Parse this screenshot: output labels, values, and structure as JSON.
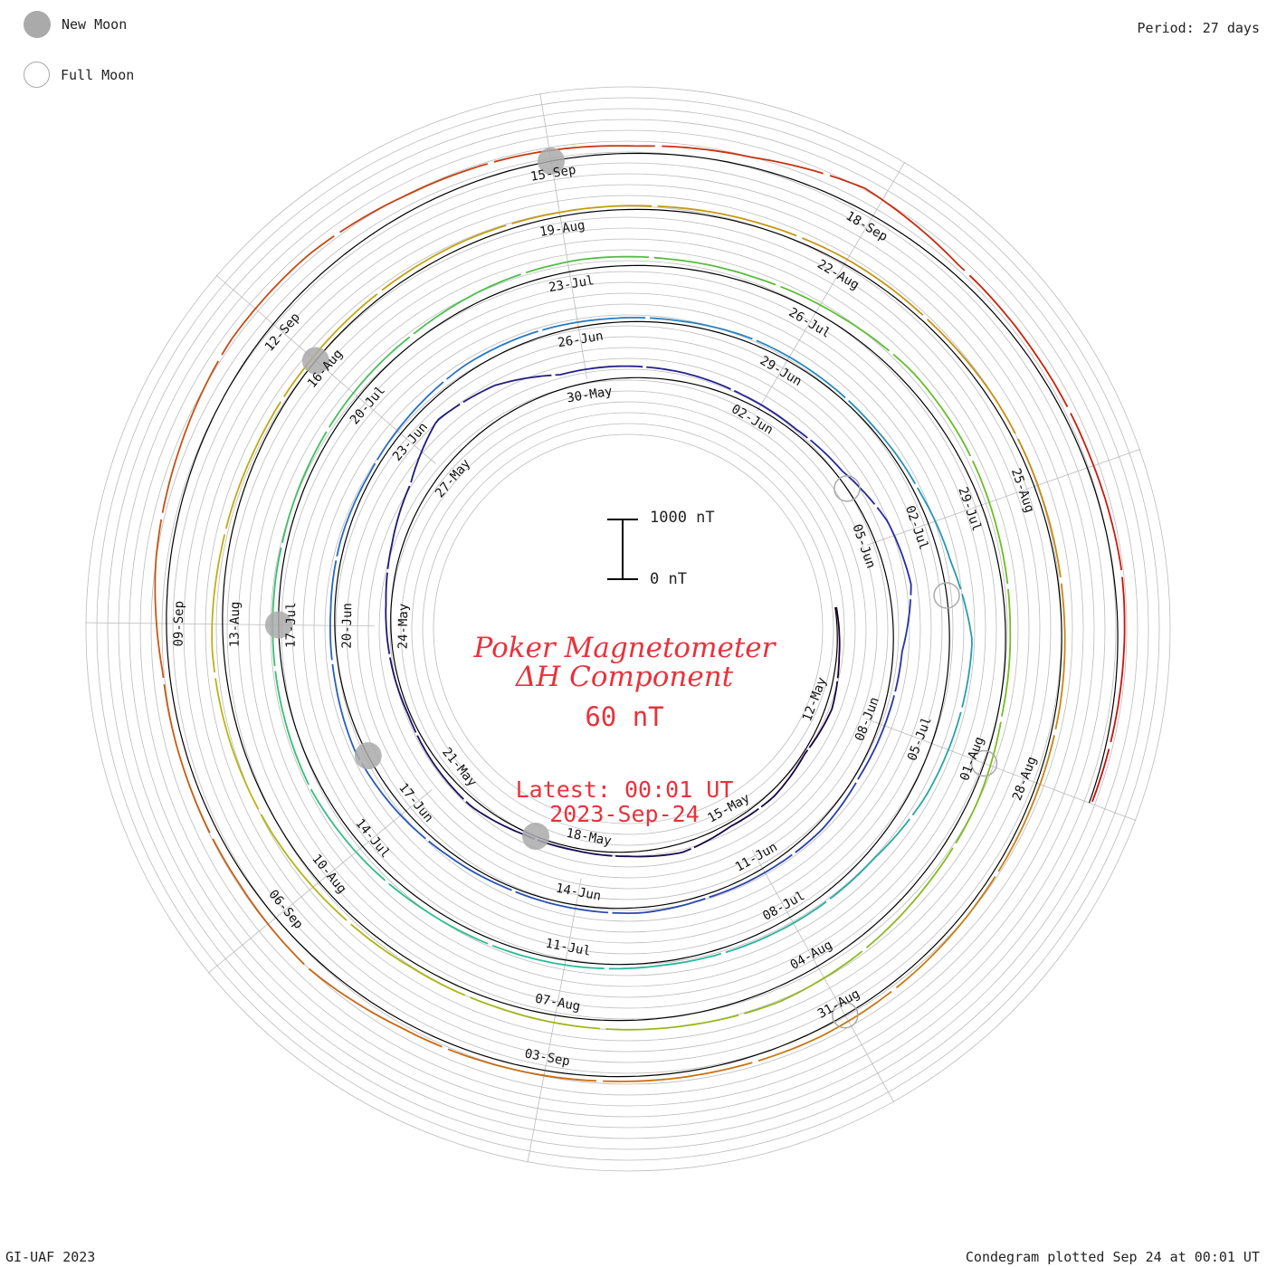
{
  "legend": {
    "new_moon": "New Moon",
    "full_moon": "Full Moon"
  },
  "period_label": "Period: 27 days",
  "credit": "GI-UAF 2023",
  "plotted_label": "Condegram plotted Sep 24 at 00:01 UT",
  "center": {
    "title_line1": "Poker Magnetometer",
    "title_line2": "ΔH Component",
    "range": "60 nT",
    "latest_line1": "Latest: 00:01 UT",
    "latest_line2": "2023-Sep-24"
  },
  "scale_bar": {
    "top_label": "1000 nT",
    "bottom_label": "0 nT"
  },
  "colors": {
    "title": "#e8323c",
    "grid": "#bbbbbb",
    "baseline": "#000000",
    "moon": "#aaaaaa"
  },
  "chart_data": {
    "type": "line",
    "subtype": "condegram-spiral",
    "period_days": 27,
    "start_date": "2023-05-10",
    "end_date": "2023-09-24",
    "date_labels": [
      "12-May",
      "15-May",
      "18-May",
      "21-May",
      "24-May",
      "27-May",
      "30-May",
      "02-Jun",
      "05-Jun",
      "08-Jun",
      "11-Jun",
      "14-Jun",
      "17-Jun",
      "20-Jun",
      "23-Jun",
      "26-Jun",
      "29-Jun",
      "02-Jul",
      "05-Jul",
      "08-Jul",
      "11-Jul",
      "14-Jul",
      "17-Jul",
      "20-Jul",
      "23-Jul",
      "26-Jul",
      "29-Jul",
      "01-Aug",
      "04-Aug",
      "07-Aug",
      "10-Aug",
      "13-Aug",
      "16-Aug",
      "19-Aug",
      "22-Aug",
      "25-Aug",
      "28-Aug",
      "31-Aug",
      "03-Sep",
      "06-Sep",
      "09-Sep",
      "12-Sep",
      "15-Sep",
      "18-Sep"
    ],
    "new_moons": [
      "2023-05-19",
      "2023-06-18",
      "2023-07-17",
      "2023-08-16",
      "2023-09-15"
    ],
    "full_moons": [
      "2023-06-04",
      "2023-07-03",
      "2023-08-01",
      "2023-08-31"
    ],
    "scale_nT": [
      0,
      1000
    ],
    "series": [
      {
        "name": "ΔH",
        "values_nT": [
          20,
          45,
          110,
          30,
          90,
          60,
          150,
          70,
          40,
          55,
          120,
          80,
          35,
          60,
          90,
          180,
          320,
          640,
          520,
          240,
          200,
          150,
          90,
          60,
          110,
          320,
          380,
          150,
          100,
          70,
          110,
          80,
          60,
          90,
          60,
          50,
          70,
          120,
          160,
          100,
          70,
          80,
          60,
          90,
          130,
          110,
          70,
          60,
          80,
          60,
          50,
          80,
          170,
          380,
          320,
          260,
          140,
          120,
          90,
          60,
          80,
          90,
          100,
          140,
          170,
          130,
          100,
          80,
          90,
          110,
          120,
          160,
          170,
          130,
          120,
          150,
          210,
          180,
          120,
          80,
          70,
          140,
          160,
          210,
          240,
          180,
          140,
          100,
          90,
          120,
          160,
          180,
          190,
          120,
          80,
          70,
          80,
          90,
          70,
          60,
          70,
          90,
          70,
          80,
          60,
          50,
          60,
          60,
          70,
          100,
          120,
          90,
          80,
          90,
          110,
          200,
          140,
          120,
          110,
          240,
          310,
          400,
          380,
          260,
          200,
          120,
          160,
          340,
          160,
          120,
          110,
          140,
          90,
          40
        ]
      }
    ]
  }
}
